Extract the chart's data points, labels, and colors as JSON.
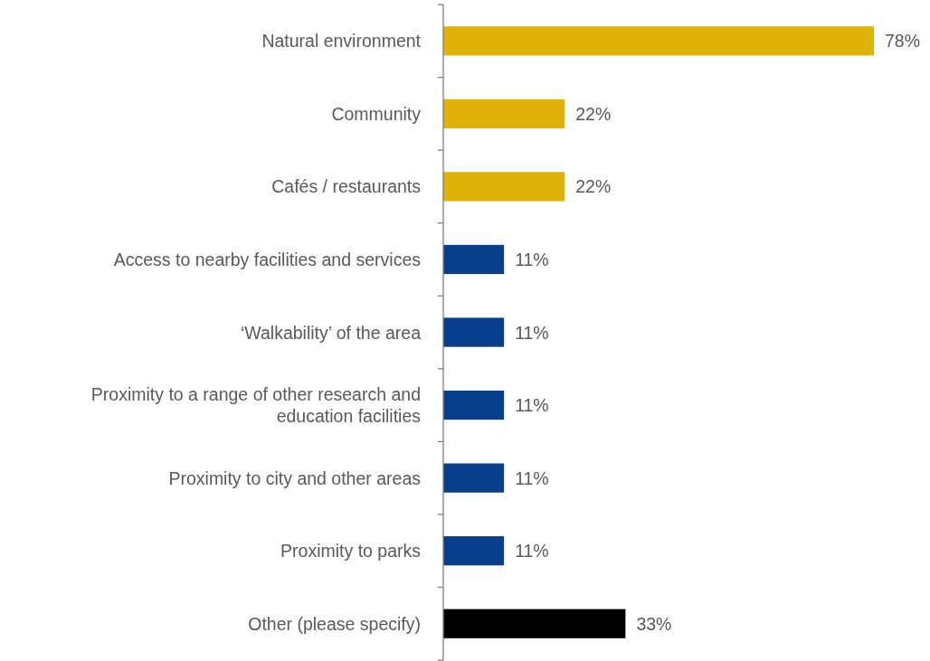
{
  "chart_data": {
    "type": "bar",
    "orientation": "horizontal",
    "categories": [
      "Natural environment",
      "Community",
      "Cafés / restaurants",
      "Access to nearby facilities and services",
      "‘Walkability’ of the area",
      "Proximity to a range of other research and education facilities",
      "Proximity to city and other areas",
      "Proximity to parks",
      "Other (please specify)"
    ],
    "values": [
      78,
      22,
      22,
      11,
      11,
      11,
      11,
      11,
      33
    ],
    "colors": [
      "#dfb20a",
      "#dfb20a",
      "#dfb20a",
      "#083f8c",
      "#083f8c",
      "#083f8c",
      "#083f8c",
      "#083f8c",
      "#000000"
    ],
    "value_labels": [
      "78%",
      "22%",
      "22%",
      "11%",
      "11%",
      "11%",
      "11%",
      "11%",
      "33%"
    ]
  }
}
